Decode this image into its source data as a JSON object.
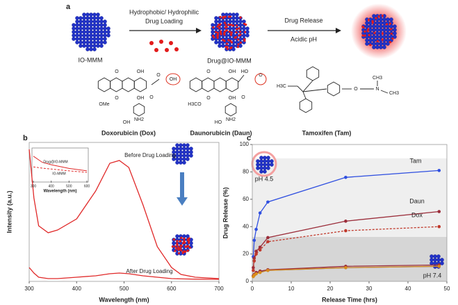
{
  "diagram": {
    "panel": "a",
    "io_label": "IO-MMM",
    "step1": [
      "Hydrophobic/ Hydrophilic",
      "Drug Loading"
    ],
    "drug_label": "Drug@IO-MMM",
    "step2": [
      "Drug Release",
      "Acidic pH"
    ],
    "molecules": [
      {
        "name": "Doxorubicin (Dox)",
        "atoms": [
          "O",
          "OH",
          "O",
          "OH",
          "OMe",
          "O",
          "OH",
          "O",
          "OH",
          "NH2"
        ]
      },
      {
        "name": "Daunorubicin (Daun)",
        "atoms": [
          "O",
          "OH",
          "HO",
          "O",
          "H3CO",
          "O",
          "OH",
          "O",
          "HO",
          "NH2"
        ]
      },
      {
        "name": "Tamoxifen (Tam)",
        "atoms": [
          "H3C",
          "O",
          "N",
          "CH3",
          "CH3"
        ]
      }
    ]
  },
  "chart_data": [
    {
      "panel": "b",
      "type": "line",
      "xlabel": "Wavelength (nm)",
      "ylabel": "Intensity (a.u.)",
      "xlim": [
        300,
        700
      ],
      "xticks": [
        300,
        400,
        500,
        600,
        700
      ],
      "ylim": [
        0,
        1
      ],
      "x": [
        300,
        310,
        320,
        340,
        360,
        400,
        440,
        470,
        490,
        510,
        540,
        570,
        600,
        620,
        650,
        700
      ],
      "series": [
        {
          "name": "Before Drug Loading",
          "color": "#e02828",
          "values": [
            0.95,
            0.6,
            0.4,
            0.35,
            0.37,
            0.45,
            0.65,
            0.85,
            0.87,
            0.82,
            0.55,
            0.25,
            0.1,
            0.05,
            0.03,
            0.02
          ]
        },
        {
          "name": "After Drug Loading",
          "color": "#e02828",
          "values": [
            0.1,
            0.06,
            0.03,
            0.02,
            0.02,
            0.03,
            0.04,
            0.055,
            0.06,
            0.055,
            0.04,
            0.03,
            0.02,
            0.018,
            0.016,
            0.015
          ]
        }
      ]
    },
    {
      "panel": "b-inset",
      "type": "line",
      "xlabel": "Wavelength (nm)",
      "xlim": [
        300,
        600
      ],
      "xticks": [
        300,
        400,
        500,
        600
      ],
      "ylim": [
        0,
        1
      ],
      "x": [
        300,
        350,
        400,
        500,
        600
      ],
      "series": [
        {
          "name": "Drug@IO-MMM",
          "color": "#e02828",
          "values": [
            0.8,
            0.6,
            0.52,
            0.4,
            0.32
          ]
        },
        {
          "name": "IO-MMM",
          "color": "#e02828",
          "dash": true,
          "values": [
            0.45,
            0.41,
            0.38,
            0.32,
            0.27
          ]
        }
      ]
    },
    {
      "panel": "c",
      "type": "line",
      "xlabel": "Release Time (hrs)",
      "ylabel": "Drug  Release  (%)",
      "xlim": [
        0,
        50
      ],
      "xticks": [
        0,
        10,
        20,
        30,
        40,
        50
      ],
      "ylim": [
        0,
        100
      ],
      "yticks": [
        0,
        20,
        40,
        60,
        80,
        100
      ],
      "annotations": [
        "pH 4.5",
        "pH 7.4"
      ],
      "x": [
        0.25,
        0.5,
        1,
        2,
        4,
        24,
        48
      ],
      "series": [
        {
          "name": "Tam",
          "color": "#2f4fe0",
          "values": [
            18,
            30,
            38,
            50,
            58,
            76,
            81
          ]
        },
        {
          "name": "Daun",
          "color": "#9b2d3a",
          "values": [
            10,
            17,
            22,
            25,
            32,
            44,
            51
          ]
        },
        {
          "name": "Dox",
          "color": "#c0392b",
          "dash": true,
          "values": [
            8,
            15,
            20,
            23,
            29,
            37,
            40
          ]
        },
        {
          "color": "#2f4fe0",
          "values": [
            4,
            5,
            6,
            7,
            8,
            10,
            11
          ]
        },
        {
          "color": "#9b2d3a",
          "values": [
            4,
            5,
            6.5,
            7.5,
            8.5,
            11,
            12
          ]
        },
        {
          "color": "#d98c1a",
          "values": [
            3.5,
            4.5,
            5.5,
            6.5,
            8,
            10,
            11
          ]
        }
      ]
    }
  ]
}
